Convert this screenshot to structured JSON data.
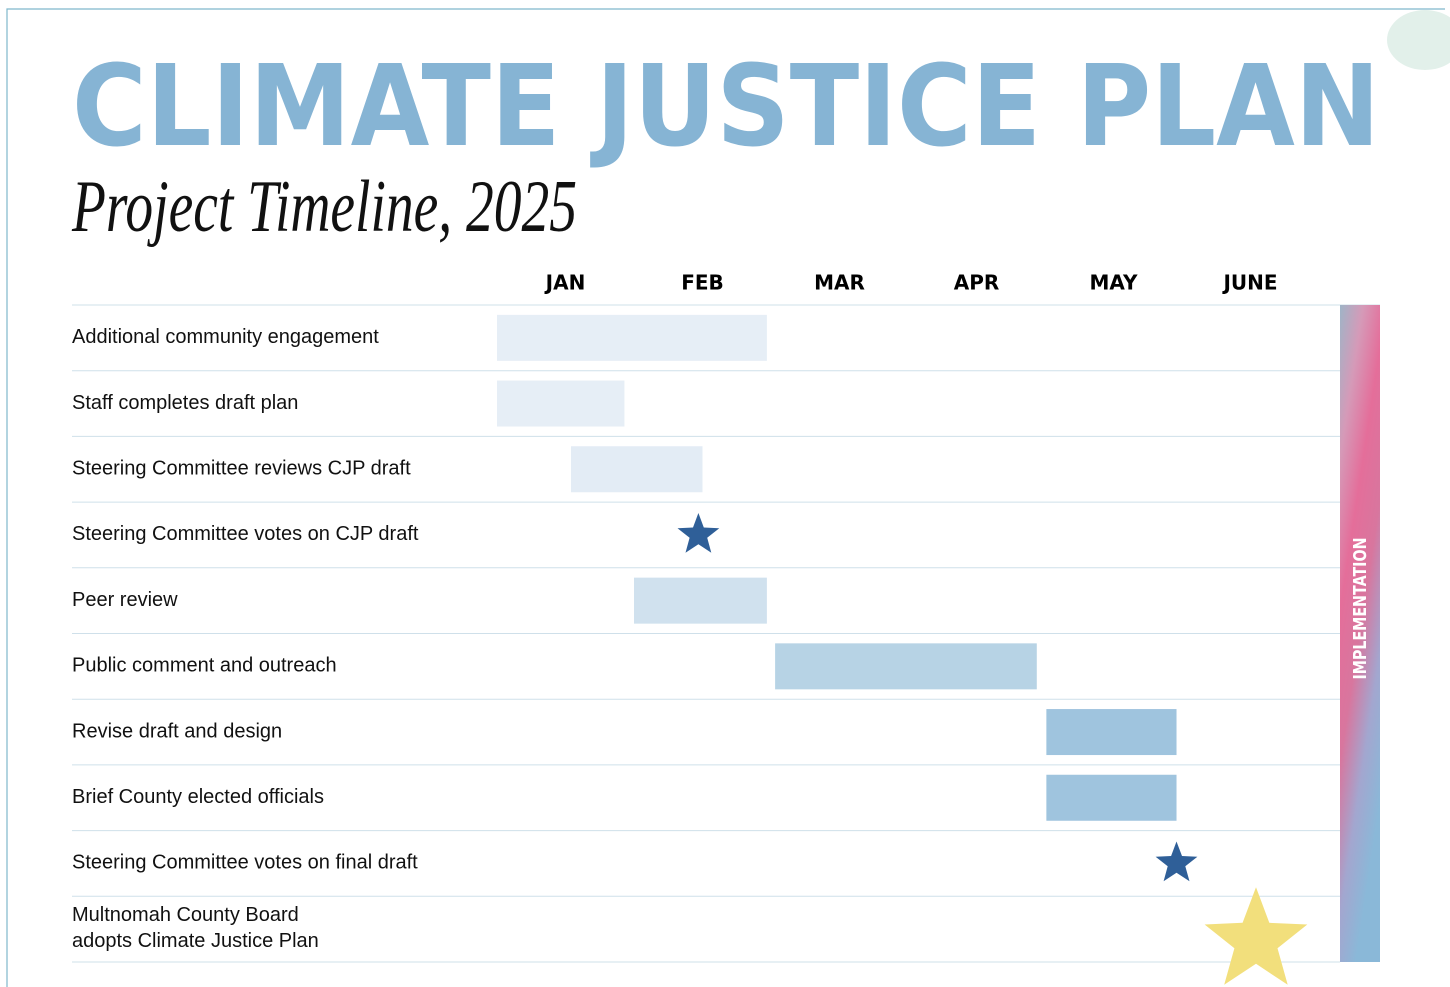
{
  "chart_data": {
    "type": "gantt",
    "title": "CLIMATE JUSTICE PLAN",
    "subtitle": "Project Timeline, 2025",
    "xlim": [
      0,
      6
    ],
    "xticks": [
      {
        "value": 0.5,
        "label": "JAN"
      },
      {
        "value": 1.5,
        "label": "FEB"
      },
      {
        "value": 2.5,
        "label": "MAR"
      },
      {
        "value": 3.5,
        "label": "APR"
      },
      {
        "value": 4.5,
        "label": "MAY"
      },
      {
        "value": 5.5,
        "label": "JUNE"
      }
    ],
    "tasks": [
      {
        "name": "Additional community engagement",
        "start": 0,
        "end": 1.97,
        "color": "#e6eef6"
      },
      {
        "name": "Staff completes draft plan",
        "start": 0,
        "end": 0.93,
        "color": "#e6eef6"
      },
      {
        "name": "Steering Committee reviews CJP draft",
        "start": 0.54,
        "end": 1.5,
        "color": "#e3ecf5"
      },
      {
        "name": "Steering Committee votes on CJP draft",
        "at": 1.47,
        "marker": "star",
        "color": "#2f5f98"
      },
      {
        "name": "Peer review",
        "start": 1.0,
        "end": 1.97,
        "color": "#d0e1ee"
      },
      {
        "name": "Public comment and outreach",
        "start": 2.03,
        "end": 3.94,
        "color": "#b7d3e5"
      },
      {
        "name": "Revise draft and design",
        "start": 4.01,
        "end": 4.96,
        "color": "#9fc4de"
      },
      {
        "name": "Brief County elected officials",
        "start": 4.01,
        "end": 4.96,
        "color": "#9fc4de"
      },
      {
        "name": "Steering Committee votes on final draft",
        "at": 4.96,
        "marker": "star",
        "color": "#2f5f98"
      },
      {
        "name": "Multnomah County Board\nadopts Climate Justice Plan",
        "at": 5.54,
        "marker": "big-star",
        "color": "#f2df7c"
      }
    ],
    "implementation_label": "IMPLEMENTATION"
  }
}
